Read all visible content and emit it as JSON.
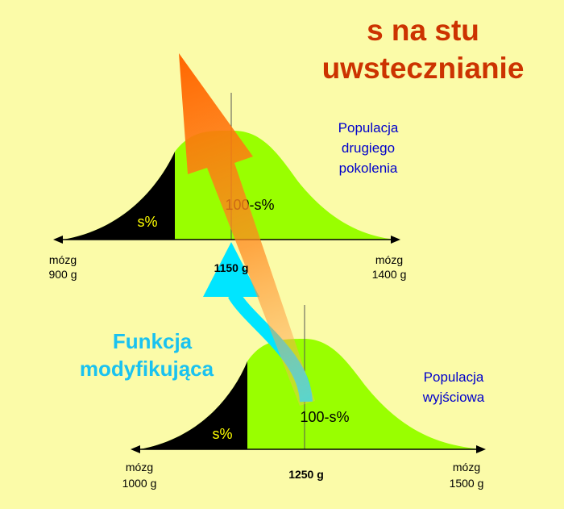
{
  "title": {
    "line1": "s na stu",
    "line2": "uwstecznianie"
  },
  "generation2": {
    "name_lines": [
      "Populacja",
      "drugiego",
      "pokolenia"
    ],
    "s_label": "s%",
    "rest_label": "100-s%",
    "left_axis": [
      "mózg",
      "900 g"
    ],
    "right_axis": [
      "mózg",
      "1400 g"
    ],
    "mean_label": "1150 g"
  },
  "generation1": {
    "name_lines": [
      "Populacja",
      "wyjściowa"
    ],
    "s_label": "s%",
    "rest_label": "100-s%",
    "left_axis": [
      "mózg",
      "1000 g"
    ],
    "right_axis": [
      "mózg",
      "1500 g"
    ],
    "mean_label": "1250 g"
  },
  "modifier": {
    "lines": [
      "Funkcja",
      "modyfikująca"
    ]
  },
  "colors": {
    "background": "#fbfba8",
    "title": "#cc3300",
    "curve_fill": "#99ff00",
    "tail_fill": "#000000",
    "population_label": "#0000cc",
    "modifier_label": "#19c2f0",
    "modifier_arrow": "#00e5ff",
    "trend_arrow": "#ff6600",
    "percent_label": "#ffff00"
  }
}
